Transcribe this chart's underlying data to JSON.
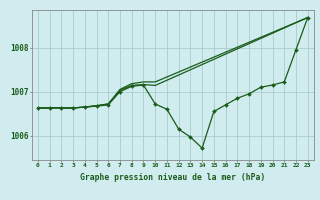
{
  "title": "Graphe pression niveau de la mer (hPa)",
  "bg_color": "#d0ecee",
  "grid_color": "#a8cccc",
  "line_color": "#1a5c1a",
  "xlim": [
    -0.5,
    23.5
  ],
  "ylim": [
    1005.45,
    1008.85
  ],
  "yticks": [
    1006,
    1007,
    1008
  ],
  "xticks": [
    0,
    1,
    2,
    3,
    4,
    5,
    6,
    7,
    8,
    9,
    10,
    11,
    12,
    13,
    14,
    15,
    16,
    17,
    18,
    19,
    20,
    21,
    22,
    23
  ],
  "series1_y": [
    1006.63,
    1006.63,
    1006.63,
    1006.63,
    1006.65,
    1006.67,
    1006.7,
    1007.0,
    1007.12,
    1007.15,
    1006.72,
    1006.6,
    1006.15,
    1005.97,
    1005.72,
    1006.55,
    1006.7,
    1006.85,
    1006.95,
    1007.1,
    1007.15,
    1007.22,
    1007.95,
    1008.68
  ],
  "series2_x": [
    0,
    1,
    2,
    3,
    4,
    5,
    6,
    7,
    8,
    9,
    10,
    23
  ],
  "series2_y": [
    1006.63,
    1006.63,
    1006.63,
    1006.63,
    1006.65,
    1006.68,
    1006.72,
    1007.05,
    1007.18,
    1007.22,
    1007.22,
    1008.68
  ],
  "series3_x": [
    0,
    1,
    2,
    3,
    4,
    5,
    6,
    7,
    8,
    9,
    10,
    23
  ],
  "series3_y": [
    1006.63,
    1006.63,
    1006.63,
    1006.63,
    1006.65,
    1006.68,
    1006.72,
    1007.03,
    1007.14,
    1007.16,
    1007.14,
    1008.68
  ]
}
